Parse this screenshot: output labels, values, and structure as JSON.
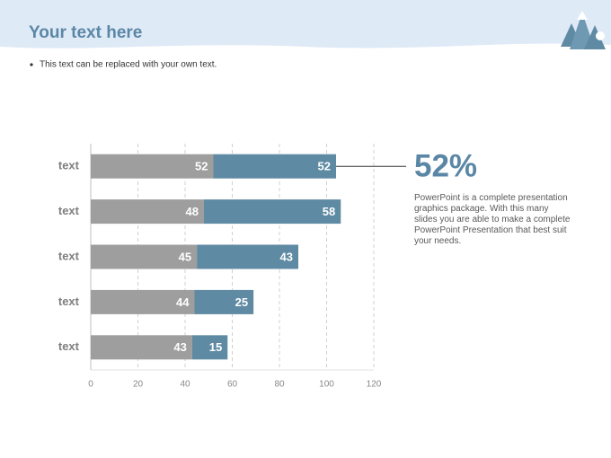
{
  "header": {
    "title": "Your text here"
  },
  "bullet": "This text can be replaced with your own text.",
  "callout": {
    "headline": "52%",
    "text": "PowerPoint is a complete presentation graphics package. With this many slides you are able to make a complete PowerPoint Presentation that best suit your needs."
  },
  "chart_data": {
    "type": "stacked-barh",
    "categories": [
      "text",
      "text",
      "text",
      "text",
      "text"
    ],
    "series": [
      {
        "color": "#9e9e9e",
        "values": [
          52,
          48,
          45,
          44,
          43
        ]
      },
      {
        "color": "#5f8aa3",
        "values": [
          52,
          58,
          43,
          25,
          15
        ]
      }
    ],
    "xlim": [
      0,
      120
    ],
    "xticks": [
      0,
      20,
      40,
      60,
      80,
      100,
      120
    ],
    "grid": true
  }
}
